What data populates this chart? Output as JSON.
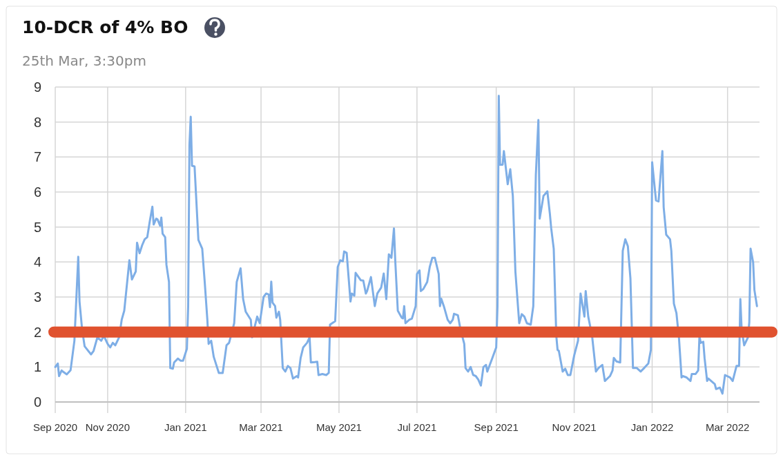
{
  "chart_data": {
    "type": "line",
    "title": "10-DCR of 4% BO",
    "subtitle": "25th Mar, 3:30pm",
    "xlim": [
      "2020-09-21",
      "2022-03-26"
    ],
    "xticks": [
      {
        "value": "2020-09-21",
        "label": "Sep 2020"
      },
      {
        "value": "2020-11-01",
        "label": "Nov 2020"
      },
      {
        "value": "2021-01-01",
        "label": "Jan 2021"
      },
      {
        "value": "2021-03-01",
        "label": "Mar 2021"
      },
      {
        "value": "2021-05-01",
        "label": "May 2021"
      },
      {
        "value": "2021-07-01",
        "label": "Jul 2021"
      },
      {
        "value": "2021-09-01",
        "label": "Sep 2021"
      },
      {
        "value": "2021-11-01",
        "label": "Nov 2021"
      },
      {
        "value": "2022-01-01",
        "label": "Jan 2022"
      },
      {
        "value": "2022-03-01",
        "label": "Mar 2022"
      }
    ],
    "ylim": [
      0,
      9
    ],
    "yticks": [
      0,
      1,
      2,
      3,
      4,
      5,
      6,
      7,
      8,
      9
    ],
    "grid": true,
    "marker": "none",
    "line_style": "solid",
    "ref_lines": [
      {
        "axis": "y",
        "value": 2,
        "color": "#e0522f"
      }
    ],
    "series": [
      {
        "color": "#7eaee6",
        "x": [
          "2020-09-21",
          "2020-09-23",
          "2020-09-24",
          "2020-09-26",
          "2020-09-27",
          "2020-09-30",
          "2020-10-03",
          "2020-10-06",
          "2020-10-09",
          "2020-10-10",
          "2020-10-12",
          "2020-10-14",
          "2020-10-19",
          "2020-10-21",
          "2020-10-24",
          "2020-10-27",
          "2020-10-29",
          "2020-11-01",
          "2020-11-03",
          "2020-11-05",
          "2020-11-07",
          "2020-11-10",
          "2020-11-12",
          "2020-11-14",
          "2020-11-16",
          "2020-11-18",
          "2020-11-20",
          "2020-11-23",
          "2020-11-24",
          "2020-11-26",
          "2020-11-28",
          "2020-11-30",
          "2020-12-02",
          "2020-12-04",
          "2020-12-06",
          "2020-12-07",
          "2020-12-09",
          "2020-12-10",
          "2020-12-12",
          "2020-12-13",
          "2020-12-14",
          "2020-12-16",
          "2020-12-17",
          "2020-12-19",
          "2020-12-20",
          "2020-12-22",
          "2020-12-23",
          "2020-12-26",
          "2020-12-28",
          "2020-12-30",
          "2021-01-02",
          "2021-01-03",
          "2021-01-04",
          "2021-01-05",
          "2021-01-06",
          "2021-01-08",
          "2021-01-11",
          "2021-01-14",
          "2021-01-16",
          "2021-01-18",
          "2021-01-19",
          "2021-01-21",
          "2021-01-23",
          "2021-01-27",
          "2021-01-30",
          "2021-02-02",
          "2021-02-04",
          "2021-02-08",
          "2021-02-10",
          "2021-02-13",
          "2021-02-15",
          "2021-02-17",
          "2021-02-21",
          "2021-02-22",
          "2021-02-26",
          "2021-02-28",
          "2021-03-03",
          "2021-03-05",
          "2021-03-07",
          "2021-03-08",
          "2021-03-09",
          "2021-03-10",
          "2021-03-12",
          "2021-03-13",
          "2021-03-15",
          "2021-03-16",
          "2021-03-18",
          "2021-03-20",
          "2021-03-22",
          "2021-03-24",
          "2021-03-26",
          "2021-03-29",
          "2021-03-30",
          "2021-04-01",
          "2021-04-03",
          "2021-04-06",
          "2021-04-08",
          "2021-04-09",
          "2021-04-12",
          "2021-04-14",
          "2021-04-15",
          "2021-04-18",
          "2021-04-21",
          "2021-04-23",
          "2021-04-24",
          "2021-04-28",
          "2021-04-30",
          "2021-05-02",
          "2021-05-04",
          "2021-05-05",
          "2021-05-07",
          "2021-05-10",
          "2021-05-11",
          "2021-05-13",
          "2021-05-14",
          "2021-05-18",
          "2021-05-20",
          "2021-05-22",
          "2021-05-23",
          "2021-05-26",
          "2021-05-29",
          "2021-05-31",
          "2021-06-03",
          "2021-06-05",
          "2021-06-07",
          "2021-06-09",
          "2021-06-11",
          "2021-06-13",
          "2021-06-14",
          "2021-06-16",
          "2021-06-19",
          "2021-06-20",
          "2021-06-21",
          "2021-06-22",
          "2021-06-25",
          "2021-06-27",
          "2021-06-30",
          "2021-07-01",
          "2021-07-03",
          "2021-07-04",
          "2021-07-06",
          "2021-07-09",
          "2021-07-11",
          "2021-07-13",
          "2021-07-15",
          "2021-07-18",
          "2021-07-19",
          "2021-07-20",
          "2021-07-22",
          "2021-07-25",
          "2021-07-27",
          "2021-07-29",
          "2021-07-30",
          "2021-08-02",
          "2021-08-04",
          "2021-08-07",
          "2021-08-08",
          "2021-08-10",
          "2021-08-12",
          "2021-08-14",
          "2021-08-16",
          "2021-08-18",
          "2021-08-20",
          "2021-08-22",
          "2021-08-24",
          "2021-08-25",
          "2021-08-29",
          "2021-09-01",
          "2021-09-02",
          "2021-09-03",
          "2021-09-04",
          "2021-09-06",
          "2021-09-07",
          "2021-09-10",
          "2021-09-12",
          "2021-09-14",
          "2021-09-16",
          "2021-09-18",
          "2021-09-19",
          "2021-09-21",
          "2021-09-23",
          "2021-09-25",
          "2021-09-28",
          "2021-09-30",
          "2021-10-02",
          "2021-10-04",
          "2021-10-05",
          "2021-10-08",
          "2021-10-09",
          "2021-10-11",
          "2021-10-13",
          "2021-10-14",
          "2021-10-16",
          "2021-10-18",
          "2021-10-19",
          "2021-10-20",
          "2021-10-23",
          "2021-10-25",
          "2021-10-27",
          "2021-10-29",
          "2021-11-01",
          "2021-11-04",
          "2021-11-06",
          "2021-11-09",
          "2021-11-10",
          "2021-11-12",
          "2021-11-15",
          "2021-11-18",
          "2021-11-20",
          "2021-11-23",
          "2021-11-25",
          "2021-11-29",
          "2021-12-01",
          "2021-12-02",
          "2021-12-04",
          "2021-12-07",
          "2021-12-09",
          "2021-12-11",
          "2021-12-13",
          "2021-12-15",
          "2021-12-17",
          "2021-12-20",
          "2021-12-23",
          "2021-12-26",
          "2021-12-29",
          "2021-12-31",
          "2022-01-01",
          "2022-01-04",
          "2022-01-06",
          "2022-01-09",
          "2022-01-10",
          "2022-01-12",
          "2022-01-15",
          "2022-01-16",
          "2022-01-18",
          "2022-01-20",
          "2022-01-22",
          "2022-01-24",
          "2022-01-25",
          "2022-01-28",
          "2022-01-31",
          "2022-02-01",
          "2022-02-04",
          "2022-02-06",
          "2022-02-07",
          "2022-02-08",
          "2022-02-10",
          "2022-02-11",
          "2022-02-13",
          "2022-02-14",
          "2022-02-19",
          "2022-02-20",
          "2022-02-23",
          "2022-02-25",
          "2022-02-27",
          "2022-03-03",
          "2022-03-05",
          "2022-03-08",
          "2022-03-10",
          "2022-03-11",
          "2022-03-12",
          "2022-03-14",
          "2022-03-17",
          "2022-03-18",
          "2022-03-19",
          "2022-03-21",
          "2022-03-22",
          "2022-03-24"
        ],
        "values": [
          1.0,
          1.1,
          0.74,
          0.9,
          0.87,
          0.79,
          0.91,
          1.75,
          4.15,
          2.87,
          2.08,
          1.59,
          1.36,
          1.46,
          1.85,
          1.75,
          1.89,
          1.66,
          1.56,
          1.69,
          1.62,
          1.85,
          2.35,
          2.61,
          3.33,
          4.05,
          3.5,
          3.73,
          4.55,
          4.25,
          4.48,
          4.65,
          4.71,
          5.17,
          5.58,
          5.07,
          5.24,
          5.22,
          5.04,
          5.27,
          4.81,
          4.71,
          3.92,
          3.43,
          0.97,
          0.95,
          1.13,
          1.24,
          1.18,
          1.18,
          1.52,
          2.74,
          7.34,
          8.15,
          6.75,
          6.73,
          4.63,
          4.38,
          3.4,
          2.35,
          1.66,
          1.75,
          1.29,
          0.83,
          0.83,
          1.62,
          1.69,
          2.25,
          3.43,
          3.82,
          2.94,
          2.58,
          2.35,
          1.85,
          2.44,
          2.25,
          3.0,
          3.1,
          3.07,
          2.71,
          3.44,
          2.84,
          2.74,
          2.41,
          2.58,
          2.35,
          0.97,
          0.87,
          1.03,
          0.97,
          0.67,
          0.74,
          0.7,
          1.26,
          1.56,
          1.69,
          1.85,
          1.13,
          1.14,
          1.15,
          0.77,
          0.8,
          0.77,
          0.83,
          2.21,
          2.31,
          3.86,
          4.05,
          4.02,
          4.3,
          4.26,
          2.87,
          3.1,
          3.04,
          3.69,
          3.48,
          3.47,
          3.1,
          3.17,
          3.57,
          2.74,
          3.1,
          3.27,
          3.67,
          2.94,
          4.22,
          4.12,
          4.96,
          4.05,
          2.61,
          2.41,
          2.39,
          2.74,
          2.25,
          2.35,
          2.38,
          2.74,
          3.66,
          3.76,
          3.17,
          3.23,
          3.43,
          3.86,
          4.12,
          4.12,
          3.66,
          2.74,
          2.95,
          2.74,
          2.35,
          2.25,
          2.35,
          2.52,
          2.48,
          2.08,
          1.66,
          0.97,
          0.87,
          1.0,
          0.77,
          0.74,
          0.64,
          0.47,
          1.0,
          1.06,
          0.87,
          1.26,
          1.56,
          2.74,
          8.75,
          6.78,
          6.78,
          7.17,
          6.22,
          6.65,
          5.89,
          3.73,
          2.74,
          2.25,
          2.51,
          2.44,
          2.25,
          2.21,
          2.74,
          6.48,
          8.06,
          5.24,
          5.89,
          5.93,
          6.02,
          5.37,
          4.97,
          4.38,
          1.89,
          1.49,
          1.46,
          0.87,
          0.95,
          0.77,
          0.77,
          1.33,
          1.75,
          3.1,
          2.44,
          3.17,
          2.44,
          1.89,
          0.87,
          0.97,
          1.06,
          0.6,
          0.74,
          0.9,
          1.26,
          1.16,
          1.13,
          4.32,
          4.65,
          4.45,
          3.53,
          0.97,
          0.97,
          0.87,
          0.98,
          1.1,
          1.49,
          6.85,
          5.76,
          5.73,
          7.17,
          5.57,
          4.78,
          4.65,
          4.32,
          2.81,
          2.54,
          1.82,
          0.7,
          0.74,
          0.7,
          0.6,
          0.8,
          0.8,
          0.9,
          1.89,
          1.69,
          1.72,
          1.26,
          0.6,
          0.67,
          0.51,
          0.37,
          0.41,
          0.24,
          0.77,
          0.7,
          0.6,
          1.03,
          1.03,
          2.94,
          2.08,
          1.62,
          1.85,
          2.28,
          4.38,
          3.99,
          3.2,
          2.74
        ]
      }
    ]
  }
}
